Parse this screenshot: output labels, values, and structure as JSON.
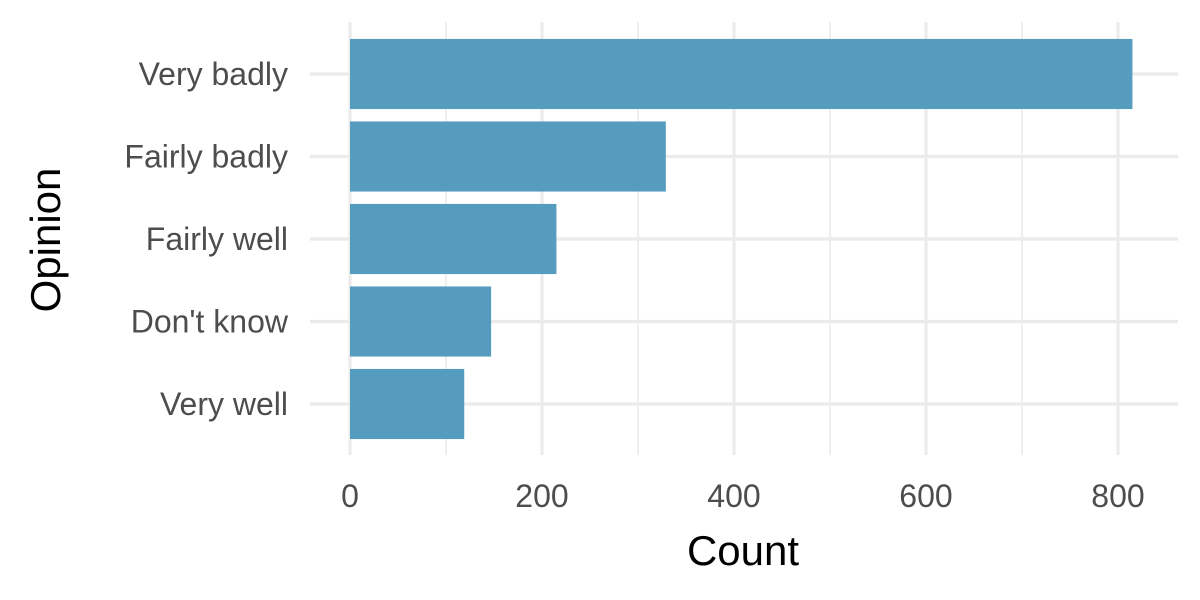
{
  "chart_data": {
    "type": "bar",
    "orientation": "horizontal",
    "categories": [
      "Very badly",
      "Fairly badly",
      "Fairly well",
      "Don't know",
      "Very well"
    ],
    "values": [
      815,
      329,
      215,
      147,
      119
    ],
    "xlabel": "Count",
    "ylabel": "Opinion",
    "xlim": [
      0,
      860
    ],
    "xticks": [
      0,
      200,
      400,
      600,
      800
    ],
    "xtick_labels": [
      "0",
      "200",
      "400",
      "600",
      "800"
    ],
    "grid": true,
    "legend": "none",
    "bar_color": "#569cbf"
  }
}
